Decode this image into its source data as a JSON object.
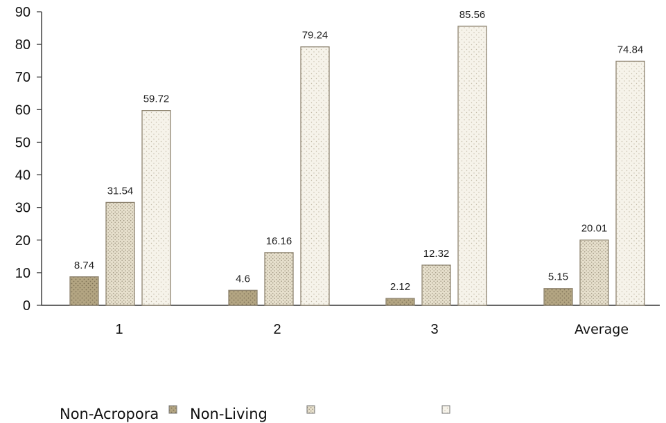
{
  "chart_data": {
    "type": "bar",
    "categories": [
      "1",
      "2",
      "3",
      "Average"
    ],
    "series": [
      {
        "name": "Non-Acropora",
        "values": [
          8.74,
          4.6,
          2.12,
          5.15
        ],
        "color": "#a89a78"
      },
      {
        "name": "Non-Living",
        "values": [
          31.54,
          16.16,
          12.32,
          20.01
        ],
        "color": "#ddd5c0"
      },
      {
        "name": "",
        "values": [
          59.72,
          79.24,
          85.56,
          74.84
        ],
        "color": "#f1ede0"
      }
    ],
    "data_labels": [
      [
        "8.74",
        "4.6",
        "2.12",
        "5.15"
      ],
      [
        "31.54",
        "16.16",
        "12.32",
        "20.01"
      ],
      [
        "59.72",
        "79.24",
        "85.56",
        "74.84"
      ]
    ],
    "y_ticks": [
      "0",
      "10",
      "20",
      "30",
      "40",
      "50",
      "60",
      "70",
      "80",
      "90"
    ],
    "ylim": [
      0,
      90
    ],
    "grid": false,
    "legend": "bottom",
    "title": "",
    "xlabel": "",
    "ylabel": ""
  }
}
